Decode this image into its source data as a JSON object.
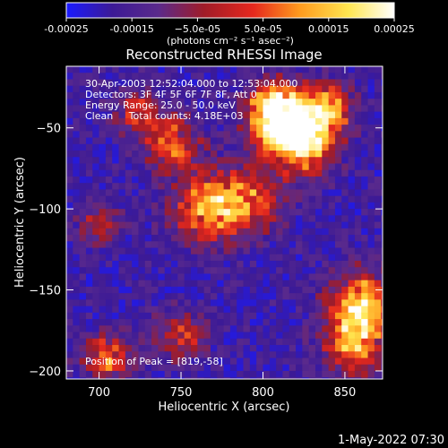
{
  "chart_data": {
    "type": "heatmap",
    "title": "Reconstructed RHESSI Image",
    "xlabel": "Heliocentric X (arcsec)",
    "ylabel": "Heliocentric Y (arcsec)",
    "xlim": [
      680,
      873
    ],
    "ylim": [
      -205,
      -12
    ],
    "x_ticks": [
      700,
      750,
      800,
      850
    ],
    "y_ticks": [
      -50,
      -100,
      -150,
      -200
    ],
    "grid": false,
    "colorbar": {
      "range": [
        -0.00025,
        0.00025
      ],
      "tick_values": [
        -0.00025,
        -0.00015,
        -5e-05,
        5e-05,
        0.00015,
        0.00025
      ],
      "tick_labels": [
        "-0.00025",
        "-0.00015",
        "−5.0e-05",
        "5.0e-05",
        "0.00015",
        "0.00025"
      ],
      "units_label": "(photons cm⁻² s⁻¹ asec⁻²)",
      "colormap": [
        "#1a1aff",
        "#3c1a96",
        "#5a2a8c",
        "#a01c28",
        "#e6281e",
        "#ff9a1e",
        "#ffe650",
        "#ffffff"
      ]
    },
    "annotations": [
      "30-Apr-2003 12:52:04.000 to 12:53:04.000",
      "Detectors: 3F 4F 5F 6F 7F 8F, Att 0",
      "Energy Range: 25.0 - 50.0 keV",
      "Clean     Total counts: 4.18E+03"
    ],
    "peak_label": "Position of Peak = [819,-58]",
    "peak": {
      "x": 819,
      "y": -58
    },
    "hot_regions": [
      {
        "x": 822,
        "y": -55,
        "sigma": 14,
        "amp": 1.0
      },
      {
        "x": 808,
        "y": -40,
        "sigma": 12,
        "amp": 0.85
      },
      {
        "x": 840,
        "y": -38,
        "sigma": 10,
        "amp": 0.55
      },
      {
        "x": 765,
        "y": -100,
        "sigma": 14,
        "amp": 0.55
      },
      {
        "x": 790,
        "y": -95,
        "sigma": 14,
        "amp": 0.5
      },
      {
        "x": 745,
        "y": -60,
        "sigma": 12,
        "amp": 0.45
      },
      {
        "x": 860,
        "y": -160,
        "sigma": 14,
        "amp": 0.7
      },
      {
        "x": 855,
        "y": -185,
        "sigma": 12,
        "amp": 0.55
      },
      {
        "x": 705,
        "y": -192,
        "sigma": 10,
        "amp": 0.5
      },
      {
        "x": 750,
        "y": -178,
        "sigma": 10,
        "amp": 0.4
      },
      {
        "x": 700,
        "y": -110,
        "sigma": 9,
        "amp": 0.3
      },
      {
        "x": 725,
        "y": -40,
        "sigma": 10,
        "amp": 0.35
      }
    ]
  },
  "footer": {
    "timestamp": "1-May-2022 07:30"
  }
}
